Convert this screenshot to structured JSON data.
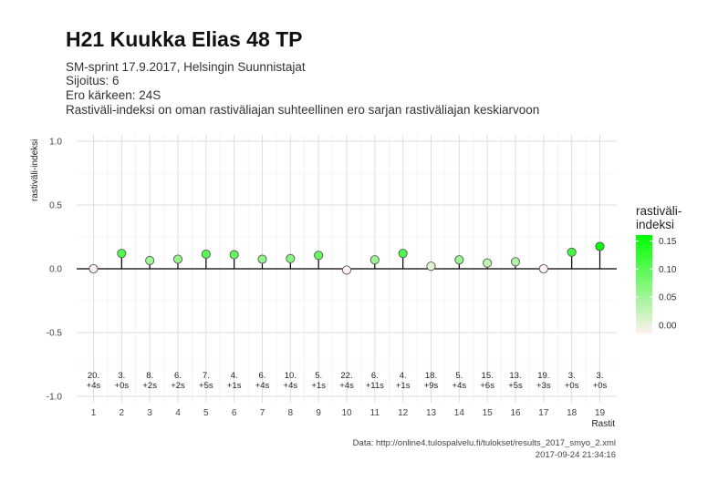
{
  "title": "H21 Kuukka Elias 48 TP",
  "subtitle_lines": [
    "SM-sprint 17.9.2017, Helsingin Suunnistajat",
    "Sijoitus: 6",
    "Ero kärkeen: 24S",
    "Rastiväli-indeksi on oman rastiväliajan suhteellinen ero sarjan rastiväliajan keskiarvoon"
  ],
  "caption_lines": [
    "Data: http://online4.tulospalvelu.fi/tulokset/results_2017_smyo_2.xml",
    "2017-09-24 21:34:16"
  ],
  "legend": {
    "title_line1": "rastiväli-",
    "title_line2": "indeksi",
    "tick_labels": [
      "0.15",
      "0.10",
      "0.05",
      "0.00"
    ],
    "tick_values": [
      0.15,
      0.1,
      0.05,
      0.0
    ],
    "color_low": "#fff0f0",
    "color_high": "#00ff00"
  },
  "chart_data": {
    "type": "scatter",
    "style": "lollipop",
    "xlabel": "Rastit",
    "ylabel": "rastiväli-indeksi",
    "x": [
      1,
      2,
      3,
      4,
      5,
      6,
      7,
      8,
      9,
      10,
      11,
      12,
      13,
      14,
      15,
      16,
      17,
      18,
      19
    ],
    "y": [
      0.0,
      0.12,
      0.065,
      0.075,
      0.115,
      0.11,
      0.075,
      0.08,
      0.105,
      -0.01,
      0.07,
      0.12,
      0.02,
      0.07,
      0.045,
      0.055,
      0.0,
      0.13,
      0.175
    ],
    "rank_labels": [
      "20.",
      "3.",
      "8.",
      "6.",
      "7.",
      "4.",
      "6.",
      "10.",
      "5.",
      "22.",
      "6.",
      "4.",
      "18.",
      "5.",
      "15.",
      "13.",
      "19.",
      "3.",
      "3."
    ],
    "diff_labels": [
      "+4s",
      "+0s",
      "+2s",
      "+2s",
      "+5s",
      "+1s",
      "+4s",
      "+4s",
      "+1s",
      "+4s",
      "+11s",
      "+1s",
      "+9s",
      "+4s",
      "+6s",
      "+5s",
      "+3s",
      "+0s",
      "+0s"
    ],
    "x_ticks": [
      "1",
      "2",
      "3",
      "4",
      "5",
      "6",
      "7",
      "8",
      "9",
      "10",
      "11",
      "12",
      "13",
      "14",
      "15",
      "16",
      "17",
      "18",
      "19"
    ],
    "y_ticks": [
      "1.0",
      "0.5",
      "0.0",
      "-0.5",
      "-1.0"
    ],
    "y_tick_values": [
      1.0,
      0.5,
      0.0,
      -0.5,
      -1.0
    ],
    "ylim": [
      -1.05,
      1.05
    ],
    "xlim": [
      0.4,
      19.6
    ],
    "grid": true,
    "legend_position": "right",
    "zero_line_color": "#000000",
    "point_outline_color": "#555555"
  }
}
